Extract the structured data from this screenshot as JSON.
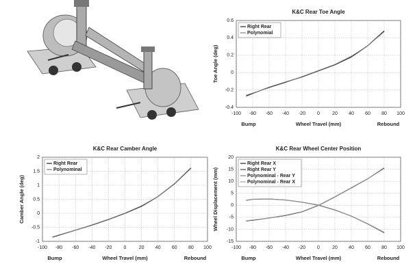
{
  "chart_data": [
    {
      "type": "line",
      "title": "K&C Rear Toe Angle",
      "xlabel": "Wheel Travel (mm)",
      "ylabel": "Toe Angle (deg)",
      "annotations": [
        "Bump",
        "Rebound"
      ],
      "x": [
        -88,
        -80,
        -60,
        -40,
        -20,
        0,
        20,
        40,
        60,
        80
      ],
      "series": [
        {
          "name": "Right Rear",
          "color": "#333333",
          "values": [
            -0.27,
            -0.24,
            -0.17,
            -0.11,
            -0.05,
            0.02,
            0.09,
            0.18,
            0.31,
            0.48
          ]
        },
        {
          "name": "Polynomial",
          "color": "#8a8a8a",
          "values": [
            -0.26,
            -0.235,
            -0.175,
            -0.115,
            -0.045,
            0.025,
            0.095,
            0.19,
            0.31,
            0.47
          ]
        }
      ],
      "xlim": [
        -100,
        100
      ],
      "xticks": [
        -100,
        -80,
        -60,
        -40,
        -20,
        0,
        20,
        40,
        60,
        80,
        100
      ],
      "ylim": [
        -0.4,
        0.6
      ],
      "yticks": [
        -0.4,
        -0.2,
        0,
        0.2,
        0.4,
        0.6
      ],
      "grid": true
    },
    {
      "type": "line",
      "title": "K&C Rear Camber Angle",
      "xlabel": "Wheel Travel (mm)",
      "ylabel": "Camber Angle (deg)",
      "annotations": [
        "Bump",
        "Rebound"
      ],
      "x": [
        -88,
        -80,
        -60,
        -40,
        -20,
        0,
        20,
        40,
        60,
        80
      ],
      "series": [
        {
          "name": "Right Rear",
          "color": "#333333",
          "values": [
            -0.85,
            -0.78,
            -0.6,
            -0.42,
            -0.22,
            0,
            0.25,
            0.6,
            1.05,
            1.62
          ]
        },
        {
          "name": "Polynominal",
          "color": "#8a8a8a",
          "values": [
            -0.84,
            -0.77,
            -0.6,
            -0.41,
            -0.21,
            0.01,
            0.27,
            0.6,
            1.04,
            1.6
          ]
        }
      ],
      "xlim": [
        -100,
        100
      ],
      "xticks": [
        -100,
        -80,
        -60,
        -40,
        -20,
        0,
        20,
        40,
        60,
        80,
        100
      ],
      "ylim": [
        -1,
        2
      ],
      "yticks": [
        -1,
        -0.5,
        0,
        0.5,
        1,
        1.5,
        2
      ],
      "grid": true
    },
    {
      "type": "line",
      "title": "K&C Rear Wheel Center Position",
      "xlabel": "Wheel Travel (mm)",
      "ylabel": "Wheel Displacement (mm)",
      "annotations": [
        "Bump",
        "Rebound"
      ],
      "x": [
        -88,
        -80,
        -60,
        -40,
        -20,
        0,
        20,
        40,
        60,
        80
      ],
      "series": [
        {
          "name": "Right Rear X",
          "color": "#333333",
          "values": [
            -6.5,
            -6.2,
            -5.3,
            -4.2,
            -2.7,
            0,
            3.5,
            7.2,
            11,
            15.5
          ]
        },
        {
          "name": "Right Rear Y",
          "color": "#555555",
          "values": [
            2,
            2.5,
            2.7,
            2.2,
            1.3,
            0,
            -2,
            -4.5,
            -7.8,
            -11.5
          ]
        },
        {
          "name": "Polynominal - Rear Y",
          "color": "#8a8a8a",
          "values": [
            2.1,
            2.5,
            2.6,
            2.2,
            1.3,
            0.1,
            -1.9,
            -4.5,
            -7.7,
            -11.3
          ]
        },
        {
          "name": "Polynominal - Rear X",
          "color": "#aaaaaa",
          "values": [
            -6.4,
            -6.1,
            -5.3,
            -4.1,
            -2.6,
            0.1,
            3.5,
            7.1,
            11,
            15.3
          ]
        }
      ],
      "xlim": [
        -100,
        100
      ],
      "xticks": [
        -100,
        -80,
        -60,
        -40,
        -20,
        0,
        20,
        40,
        60,
        80,
        100
      ],
      "ylim": [
        -15,
        20
      ],
      "yticks": [
        -15,
        -10,
        -5,
        0,
        5,
        10,
        15,
        20
      ],
      "grid": true
    }
  ]
}
